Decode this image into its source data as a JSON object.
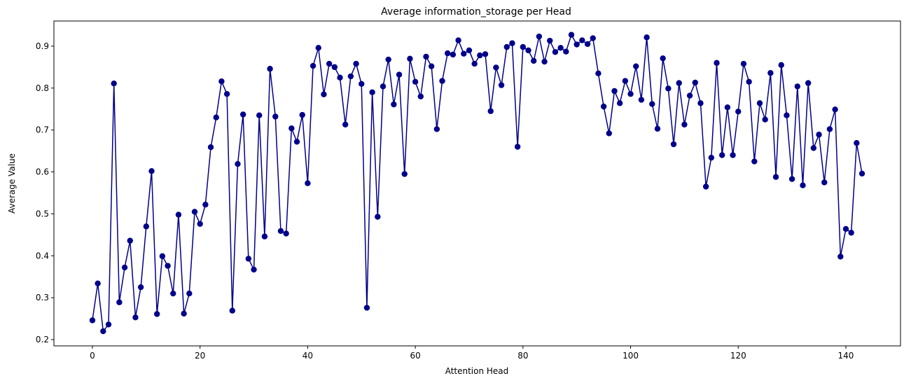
{
  "chart_data": {
    "type": "line",
    "title": "Average information_storage per Head",
    "xlabel": "Attention Head",
    "ylabel": "Average Value",
    "xlim": [
      -7.15,
      150.15
    ],
    "ylim": [
      0.185,
      0.96
    ],
    "xticks": [
      0,
      20,
      40,
      60,
      80,
      100,
      120,
      140
    ],
    "yticks": [
      0.2,
      0.3,
      0.4,
      0.5,
      0.6,
      0.7,
      0.8,
      0.9
    ],
    "xtick_labels": [
      "0",
      "20",
      "40",
      "60",
      "80",
      "100",
      "120",
      "140"
    ],
    "ytick_labels": [
      "0.2",
      "0.3",
      "0.4",
      "0.5",
      "0.6",
      "0.7",
      "0.8",
      "0.9"
    ],
    "grid": false,
    "color": "#00008b",
    "marker": "circle",
    "series": [
      {
        "values": [
          0.246,
          0.334,
          0.22,
          0.236,
          0.811,
          0.289,
          0.372,
          0.436,
          0.253,
          0.325,
          0.47,
          0.602,
          0.261,
          0.399,
          0.376,
          0.31,
          0.498,
          0.262,
          0.31,
          0.505,
          0.476,
          0.522,
          0.659,
          0.73,
          0.816,
          0.786,
          0.269,
          0.619,
          0.737,
          0.393,
          0.367,
          0.735,
          0.446,
          0.846,
          0.732,
          0.459,
          0.453,
          0.704,
          0.672,
          0.736,
          0.573,
          0.853,
          0.896,
          0.785,
          0.858,
          0.85,
          0.825,
          0.713,
          0.828,
          0.858,
          0.81,
          0.276,
          0.79,
          0.493,
          0.804,
          0.868,
          0.761,
          0.832,
          0.595,
          0.87,
          0.815,
          0.78,
          0.875,
          0.852,
          0.702,
          0.817,
          0.883,
          0.88,
          0.914,
          0.882,
          0.89,
          0.858,
          0.878,
          0.881,
          0.745,
          0.849,
          0.807,
          0.898,
          0.907,
          0.66,
          0.898,
          0.89,
          0.865,
          0.923,
          0.863,
          0.913,
          0.886,
          0.896,
          0.887,
          0.927,
          0.904,
          0.914,
          0.905,
          0.919,
          0.835,
          0.756,
          0.692,
          0.793,
          0.764,
          0.817,
          0.786,
          0.852,
          0.772,
          0.921,
          0.762,
          0.703,
          0.871,
          0.799,
          0.666,
          0.812,
          0.713,
          0.782,
          0.813,
          0.764,
          0.565,
          0.634,
          0.86,
          0.64,
          0.754,
          0.64,
          0.744,
          0.858,
          0.815,
          0.625,
          0.764,
          0.725,
          0.836,
          0.588,
          0.855,
          0.735,
          0.583,
          0.804,
          0.568,
          0.812,
          0.657,
          0.689,
          0.575,
          0.702,
          0.749,
          0.398,
          0.464,
          0.455,
          0.669,
          0.596
        ]
      }
    ]
  }
}
